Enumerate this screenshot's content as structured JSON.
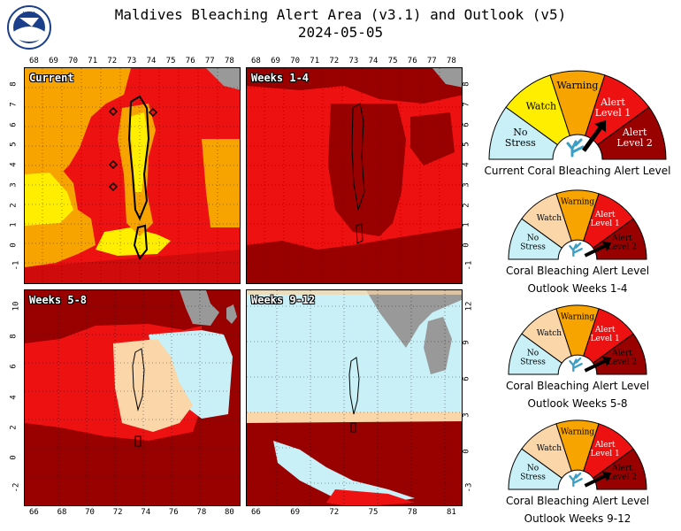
{
  "header": {
    "title": "Maldives Bleaching Alert Area (v3.1) and Outlook (v5)",
    "date": "2024-05-05",
    "logo_text": "NOAA"
  },
  "colors": {
    "no_stress": "#c8f0f6",
    "watch_light": "#fad6a8",
    "watch": "#ffee00",
    "warning": "#f7a400",
    "alert1": "#ee1111",
    "alert2": "#990000",
    "land": "#999999"
  },
  "panels": [
    {
      "label": "Current",
      "x_ticks": [
        "68",
        "69",
        "70",
        "71",
        "72",
        "73",
        "74",
        "75",
        "76",
        "77",
        "78"
      ],
      "y_ticks": [
        "8",
        "7",
        "6",
        "5",
        "4",
        "3",
        "2",
        "1",
        "0",
        "-1"
      ]
    },
    {
      "label": "Weeks 1-4",
      "x_ticks": [
        "68",
        "69",
        "70",
        "71",
        "72",
        "73",
        "74",
        "75",
        "76",
        "77",
        "78"
      ],
      "y_ticks": [
        "8",
        "7",
        "6",
        "5",
        "4",
        "3",
        "2",
        "1",
        "0",
        "-1"
      ]
    },
    {
      "label": "Weeks 5-8",
      "x_ticks": [
        "66",
        "68",
        "70",
        "72",
        "74",
        "76",
        "78",
        "80"
      ],
      "y_ticks": [
        "10",
        "8",
        "6",
        "4",
        "2",
        "0",
        "-2"
      ]
    },
    {
      "label": "Weeks 9-12",
      "x_ticks": [
        "66",
        "69",
        "72",
        "75",
        "78",
        "81"
      ],
      "y_ticks": [
        "12",
        "9",
        "6",
        "3",
        "0",
        "-3"
      ]
    }
  ],
  "gauge_labels": {
    "no_stress": [
      "No",
      "Stress"
    ],
    "watch": "Watch",
    "warning": "Warning",
    "alert1": [
      "Alert",
      "Level 1"
    ],
    "alert2": [
      "Alert",
      "Level 2"
    ]
  },
  "gauges": [
    {
      "caption_1": "Current Coral Bleaching Alert Level",
      "caption_2": "",
      "level": "Alert Level 1"
    },
    {
      "caption_1": "Coral Bleaching Alert Level",
      "caption_2": "Outlook Weeks 1-4",
      "level": "Alert Level 2"
    },
    {
      "caption_1": "Coral Bleaching Alert Level",
      "caption_2": "Outlook Weeks 5-8",
      "level": "Alert Level 2"
    },
    {
      "caption_1": "Coral Bleaching Alert Level",
      "caption_2": "Outlook Weeks 9-12",
      "level": "Alert Level 2"
    }
  ]
}
